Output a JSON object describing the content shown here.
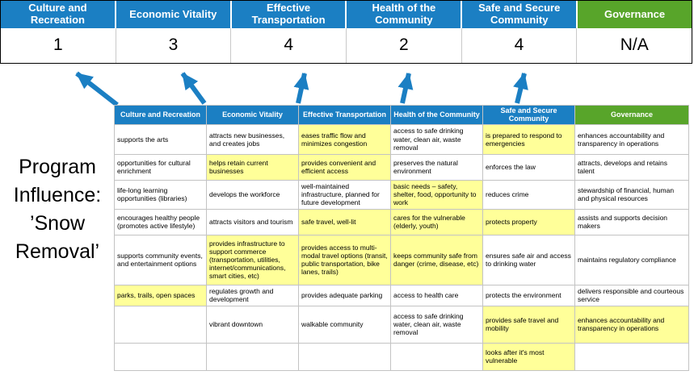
{
  "title": {
    "text": "Program Influence: ’Snow Removal’"
  },
  "colors": {
    "blue": "#1B7FC3",
    "green": "#58A52A",
    "highlight": "#FFFF99"
  },
  "scoreboard": {
    "columns": [
      {
        "label": "Culture and Recreation",
        "score": "1",
        "color": "blue"
      },
      {
        "label": "Economic Vitality",
        "score": "3",
        "color": "blue"
      },
      {
        "label": "Effective Transportation",
        "score": "4",
        "color": "blue"
      },
      {
        "label": "Health of the Community",
        "score": "2",
        "color": "blue"
      },
      {
        "label": "Safe and Secure Community",
        "score": "4",
        "color": "blue"
      },
      {
        "label": "Governance",
        "score": "N/A",
        "color": "green"
      }
    ]
  },
  "matrix": {
    "headers": [
      {
        "label": "Culture and Recreation",
        "color": "blue"
      },
      {
        "label": "Economic Vitality",
        "color": "blue"
      },
      {
        "label": "Effective Transportation",
        "color": "blue"
      },
      {
        "label": "Health of the Community",
        "color": "blue"
      },
      {
        "label": "Safe and Secure Community",
        "color": "blue"
      },
      {
        "label": "Governance",
        "color": "green"
      }
    ],
    "rows": [
      [
        {
          "text": "supports the arts",
          "highlight": false
        },
        {
          "text": "attracts new businesses, and creates jobs",
          "highlight": false
        },
        {
          "text": "eases traffic flow and minimizes congestion",
          "highlight": true
        },
        {
          "text": "access to safe drinking water, clean air, waste removal",
          "highlight": false
        },
        {
          "text": "is prepared to respond to emergencies",
          "highlight": true
        },
        {
          "text": "enhances accountability and transparency in operations",
          "highlight": false
        }
      ],
      [
        {
          "text": "opportunities for cultural enrichment",
          "highlight": false
        },
        {
          "text": "helps retain current businesses",
          "highlight": true
        },
        {
          "text": "provides convenient and efficient access",
          "highlight": true
        },
        {
          "text": "preserves the natural environment",
          "highlight": false
        },
        {
          "text": "enforces the law",
          "highlight": false
        },
        {
          "text": "attracts, develops and retains talent",
          "highlight": false
        }
      ],
      [
        {
          "text": "life-long learning opportunities (libraries)",
          "highlight": false
        },
        {
          "text": "develops the workforce",
          "highlight": false
        },
        {
          "text": "well-maintained infrastructure, planned for future development",
          "highlight": false
        },
        {
          "text": "basic needs – safety, shelter, food, opportunity to work",
          "highlight": true
        },
        {
          "text": "reduces crime",
          "highlight": false
        },
        {
          "text": "stewardship of financial, human and physical resources",
          "highlight": false
        }
      ],
      [
        {
          "text": "encourages healthy people (promotes active lifestyle)",
          "highlight": false
        },
        {
          "text": "attracts visitors and tourism",
          "highlight": false
        },
        {
          "text": "safe travel, well-lit",
          "highlight": true
        },
        {
          "text": "cares for the vulnerable (elderly, youth)",
          "highlight": true
        },
        {
          "text": "protects property",
          "highlight": true
        },
        {
          "text": "assists and supports decision makers",
          "highlight": false
        }
      ],
      [
        {
          "text": "supports community events, and entertainment options",
          "highlight": false
        },
        {
          "text": "provides infrastructure to support commerce (transportation, utilities, internet/communications, smart cities, etc)",
          "highlight": true
        },
        {
          "text": "provides access to multi-modal travel options (transit, public transportation, bike lanes, trails)",
          "highlight": true
        },
        {
          "text": "keeps community safe from danger (crime, disease, etc)",
          "highlight": true
        },
        {
          "text": "ensures safe air and access to drinking water",
          "highlight": false
        },
        {
          "text": "maintains regulatory compliance",
          "highlight": false
        }
      ],
      [
        {
          "text": "parks, trails, open spaces",
          "highlight": true
        },
        {
          "text": "regulates growth and development",
          "highlight": false
        },
        {
          "text": "provides adequate parking",
          "highlight": false
        },
        {
          "text": "access to health care",
          "highlight": false
        },
        {
          "text": "protects the environment",
          "highlight": false
        },
        {
          "text": "delivers responsible and courteous service",
          "highlight": false
        }
      ],
      [
        {
          "text": "",
          "highlight": false
        },
        {
          "text": "vibrant downtown",
          "highlight": false
        },
        {
          "text": "walkable community",
          "highlight": false
        },
        {
          "text": "access to safe drinking water, clean air, waste removal",
          "highlight": false
        },
        {
          "text": "provides safe travel and mobility",
          "highlight": true
        },
        {
          "text": "enhances accountability and transparency in operations",
          "highlight": true
        }
      ],
      [
        {
          "text": "",
          "highlight": false
        },
        {
          "text": "",
          "highlight": false
        },
        {
          "text": "",
          "highlight": false
        },
        {
          "text": "",
          "highlight": false
        },
        {
          "text": "looks after it's most vulnerable",
          "highlight": true
        },
        {
          "text": "",
          "highlight": false
        }
      ]
    ]
  }
}
